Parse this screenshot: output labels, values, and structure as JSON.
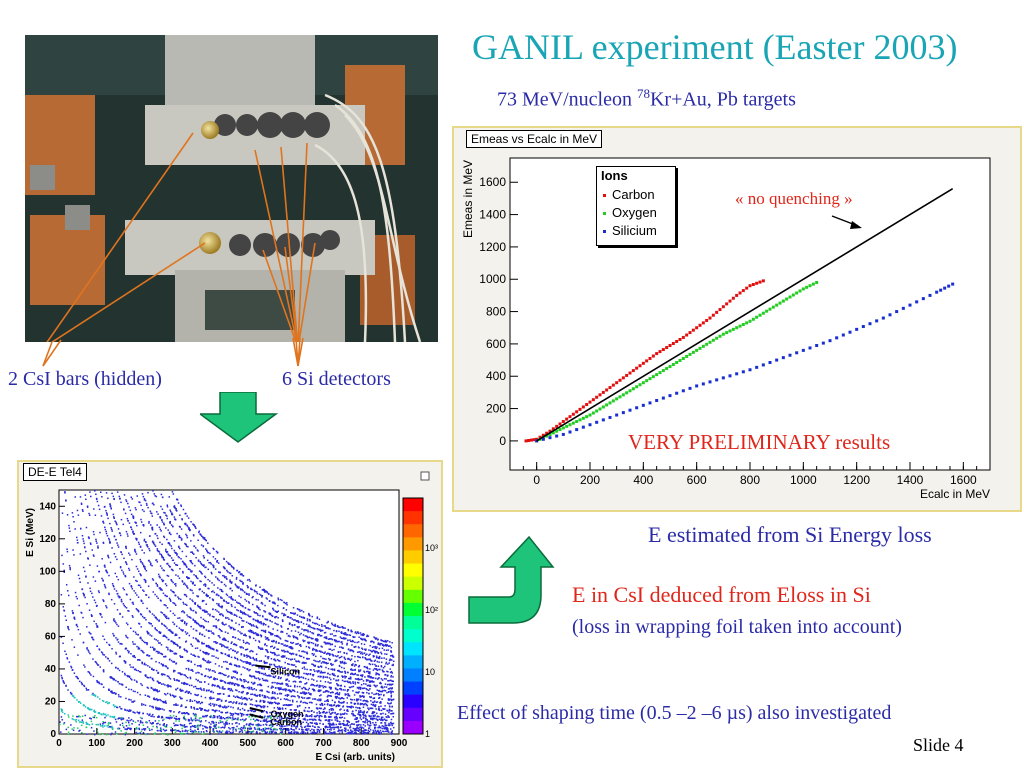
{
  "slide": {
    "title": "GANIL experiment (Easter 2003)",
    "subtitle_pre": "73 MeV/nucleon ",
    "subtitle_sup": "78",
    "subtitle_post": "Kr+Au, Pb targets",
    "slide_number": "Slide 4"
  },
  "photo": {
    "label_csi": "2 CsI bars (hidden)",
    "label_si": "6 Si detectors"
  },
  "texts": {
    "e_estimated": "E estimated from Si Energy loss",
    "e_csi": "E in CsI deduced from Eloss in Si",
    "loss_note": "(loss in wrapping foil taken into account)",
    "shaping": "Effect of shaping time (0.5 –2 –6 µs) also investigated"
  },
  "colors": {
    "title": "#19a5b5",
    "blue_text": "#2b2ba8",
    "red_text": "#e0261a",
    "arrow_green": "#1ec47a",
    "carbon": "#e01010",
    "oxygen": "#22cc22",
    "silicium": "#1a2fd0"
  },
  "chart_data": [
    {
      "type": "scatter",
      "stat_title": "Emeas vs Ecalc in MeV",
      "xlabel": "Ecalc in MeV",
      "ylabel": "Emeas in MeV",
      "xlim": [
        -100,
        1700
      ],
      "ylim": [
        -180,
        1750
      ],
      "xticks": [
        "0",
        "200",
        "400",
        "600",
        "800",
        "1000",
        "1200",
        "1400",
        "1600"
      ],
      "yticks": [
        "0",
        "200",
        "400",
        "600",
        "800",
        "1000",
        "1200",
        "1400",
        "1600"
      ],
      "legend_title": "Ions",
      "legend_position": "top-left",
      "annotation_line": "« no quenching »",
      "annotation_prelim": "VERY PRELIMINARY results",
      "series": [
        {
          "name": "Carbon",
          "color": "#e01010",
          "x": [
            -40,
            0,
            50,
            100,
            150,
            200,
            250,
            300,
            350,
            400,
            450,
            500,
            550,
            600,
            650,
            700,
            750,
            800,
            850
          ],
          "y": [
            0,
            10,
            60,
            120,
            180,
            240,
            300,
            360,
            420,
            480,
            540,
            590,
            640,
            700,
            760,
            830,
            900,
            960,
            990
          ]
        },
        {
          "name": "Oxygen",
          "color": "#22cc22",
          "x": [
            0,
            50,
            100,
            150,
            200,
            250,
            300,
            350,
            400,
            450,
            500,
            550,
            600,
            650,
            700,
            750,
            800,
            850,
            900,
            950,
            1000,
            1050
          ],
          "y": [
            0,
            40,
            80,
            120,
            160,
            210,
            260,
            310,
            360,
            410,
            460,
            510,
            560,
            610,
            660,
            700,
            740,
            790,
            840,
            890,
            940,
            980
          ]
        },
        {
          "name": "Silicium",
          "color": "#1a2fd0",
          "x": [
            0,
            100,
            200,
            300,
            400,
            500,
            600,
            700,
            800,
            900,
            1000,
            1100,
            1200,
            1300,
            1400,
            1500,
            1560
          ],
          "y": [
            0,
            40,
            100,
            160,
            220,
            280,
            340,
            390,
            440,
            500,
            560,
            620,
            690,
            760,
            840,
            920,
            970
          ]
        },
        {
          "name": "« no quenching »",
          "color": "#000000",
          "x": [
            0,
            1560
          ],
          "y": [
            0,
            1560
          ]
        }
      ]
    },
    {
      "type": "heatmap",
      "stat_title": "DE-E Tel4",
      "xlabel": "E Csi (arb. units)",
      "ylabel": "E Si (MeV)",
      "xlim": [
        0,
        900
      ],
      "ylim": [
        0,
        150
      ],
      "xticks": [
        "0",
        "100",
        "200",
        "300",
        "400",
        "500",
        "600",
        "700",
        "800",
        "900"
      ],
      "yticks": [
        "0",
        "20",
        "40",
        "60",
        "80",
        "100",
        "120",
        "140"
      ],
      "colorbar_ticks": [
        "1",
        "10",
        "10²",
        "10³"
      ],
      "annotations": [
        "Silicon",
        "Oxygen",
        "Carbon"
      ]
    }
  ]
}
